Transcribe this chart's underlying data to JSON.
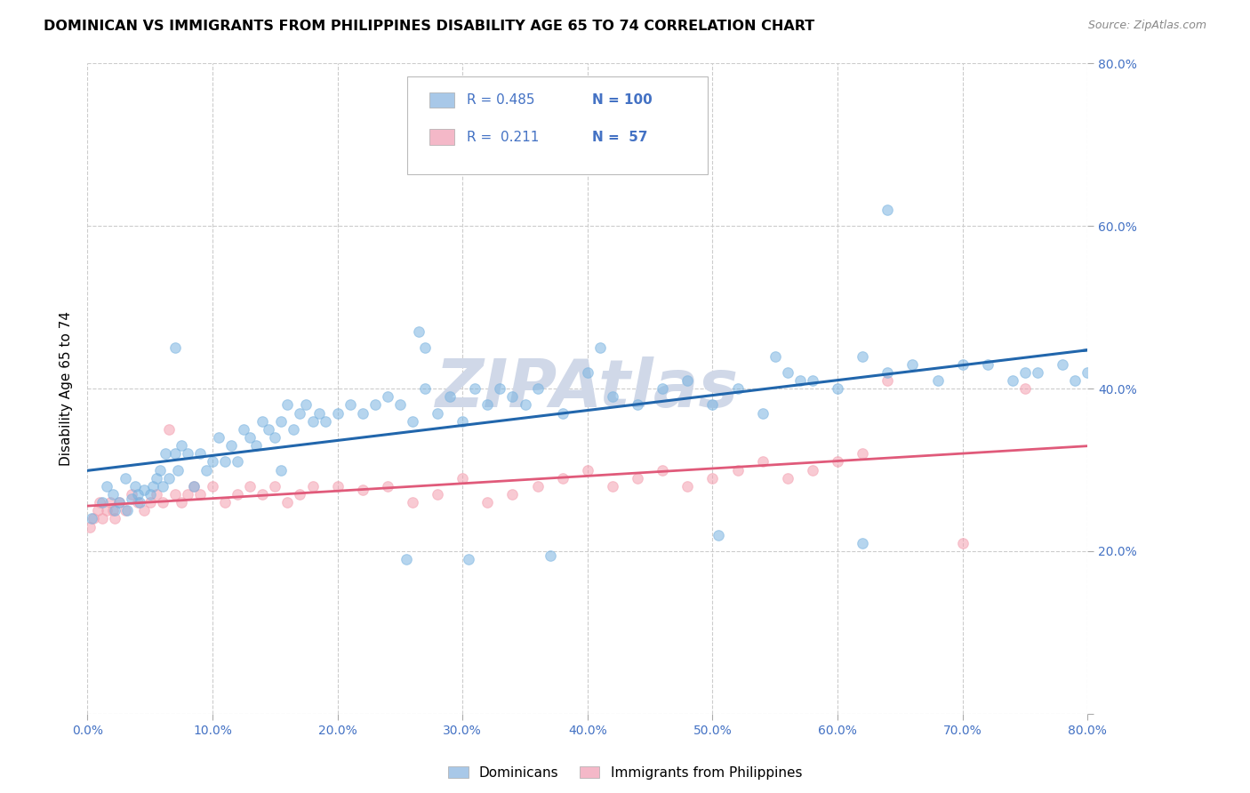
{
  "title": "DOMINICAN VS IMMIGRANTS FROM PHILIPPINES DISABILITY AGE 65 TO 74 CORRELATION CHART",
  "source": "Source: ZipAtlas.com",
  "ylabel": "Disability Age 65 to 74",
  "legend_entries": [
    {
      "label": "Dominicans",
      "color": "#a8c8e8",
      "R": "0.485",
      "N": "100"
    },
    {
      "label": "Immigrants from Philippines",
      "color": "#f4b8c8",
      "R": "0.211",
      "N": "57"
    }
  ],
  "dominican_x": [
    0.3,
    1.2,
    1.5,
    2.0,
    2.2,
    2.5,
    3.0,
    3.2,
    3.5,
    3.8,
    4.0,
    4.2,
    4.5,
    5.0,
    5.2,
    5.5,
    5.8,
    6.0,
    6.2,
    6.5,
    7.0,
    7.2,
    7.5,
    8.0,
    8.5,
    9.0,
    9.5,
    10.0,
    10.5,
    11.0,
    11.5,
    12.0,
    12.5,
    13.0,
    13.5,
    14.0,
    14.5,
    15.0,
    15.5,
    16.0,
    16.5,
    17.0,
    17.5,
    18.0,
    18.5,
    19.0,
    20.0,
    21.0,
    22.0,
    23.0,
    24.0,
    25.0,
    26.0,
    27.0,
    28.0,
    29.0,
    30.0,
    31.0,
    32.0,
    33.0,
    34.0,
    35.0,
    36.0,
    38.0,
    40.0,
    42.0,
    44.0,
    46.0,
    48.0,
    50.0,
    52.0,
    54.0,
    56.0,
    58.0,
    60.0,
    62.0,
    64.0,
    66.0,
    68.0,
    70.0,
    72.0,
    74.0,
    75.0,
    76.0,
    78.0,
    79.0,
    80.0,
    64.0,
    26.5,
    55.0,
    57.0,
    27.0,
    41.0,
    7.0,
    50.5,
    37.0,
    15.5,
    25.5,
    30.5,
    62.0
  ],
  "dominican_y": [
    24.0,
    26.0,
    28.0,
    27.0,
    25.0,
    26.0,
    29.0,
    25.0,
    26.5,
    28.0,
    27.0,
    26.0,
    27.5,
    27.0,
    28.0,
    29.0,
    30.0,
    28.0,
    32.0,
    29.0,
    32.0,
    30.0,
    33.0,
    32.0,
    28.0,
    32.0,
    30.0,
    31.0,
    34.0,
    31.0,
    33.0,
    31.0,
    35.0,
    34.0,
    33.0,
    36.0,
    35.0,
    34.0,
    36.0,
    38.0,
    35.0,
    37.0,
    38.0,
    36.0,
    37.0,
    36.0,
    37.0,
    38.0,
    37.0,
    38.0,
    39.0,
    38.0,
    36.0,
    40.0,
    37.0,
    39.0,
    36.0,
    40.0,
    38.0,
    40.0,
    39.0,
    38.0,
    40.0,
    37.0,
    42.0,
    39.0,
    38.0,
    40.0,
    41.0,
    38.0,
    40.0,
    37.0,
    42.0,
    41.0,
    40.0,
    44.0,
    42.0,
    43.0,
    41.0,
    43.0,
    43.0,
    41.0,
    42.0,
    42.0,
    43.0,
    41.0,
    42.0,
    62.0,
    47.0,
    44.0,
    41.0,
    45.0,
    45.0,
    45.0,
    22.0,
    19.5,
    30.0,
    19.0,
    19.0,
    21.0
  ],
  "philippines_x": [
    0.2,
    0.5,
    0.8,
    1.0,
    1.2,
    1.5,
    1.8,
    2.0,
    2.2,
    2.5,
    3.0,
    3.5,
    4.0,
    4.5,
    5.0,
    5.5,
    6.0,
    6.5,
    7.0,
    7.5,
    8.0,
    8.5,
    9.0,
    10.0,
    11.0,
    12.0,
    13.0,
    14.0,
    15.0,
    16.0,
    17.0,
    18.0,
    20.0,
    22.0,
    24.0,
    26.0,
    28.0,
    30.0,
    32.0,
    34.0,
    36.0,
    38.0,
    40.0,
    42.0,
    44.0,
    46.0,
    48.0,
    50.0,
    52.0,
    54.0,
    56.0,
    58.0,
    60.0,
    62.0,
    64.0,
    70.0,
    75.0
  ],
  "philippines_y": [
    23.0,
    24.0,
    25.0,
    26.0,
    24.0,
    25.0,
    26.0,
    25.0,
    24.0,
    26.0,
    25.0,
    27.0,
    26.0,
    25.0,
    26.0,
    27.0,
    26.0,
    35.0,
    27.0,
    26.0,
    27.0,
    28.0,
    27.0,
    28.0,
    26.0,
    27.0,
    28.0,
    27.0,
    28.0,
    26.0,
    27.0,
    28.0,
    28.0,
    27.5,
    28.0,
    26.0,
    27.0,
    29.0,
    26.0,
    27.0,
    28.0,
    29.0,
    30.0,
    28.0,
    29.0,
    30.0,
    28.0,
    29.0,
    30.0,
    31.0,
    29.0,
    30.0,
    31.0,
    32.0,
    41.0,
    21.0,
    40.0
  ],
  "background_color": "#ffffff",
  "dot_size": 70,
  "dot_alpha": 0.55,
  "dominican_color": "#7ab3e0",
  "philippines_color": "#f4a0b0",
  "regression_blue_color": "#2166ac",
  "regression_pink_color": "#e05a7a",
  "xlim": [
    0,
    80
  ],
  "ylim": [
    0,
    80
  ],
  "grid_color": "#cccccc",
  "title_fontsize": 11.5,
  "axis_color": "#4472c4",
  "watermark": "ZIPAtlas",
  "watermark_color": "#d0d8e8",
  "xticks": [
    0,
    10,
    20,
    30,
    40,
    50,
    60,
    70,
    80
  ],
  "yticks": [
    0,
    20,
    40,
    60,
    80
  ]
}
